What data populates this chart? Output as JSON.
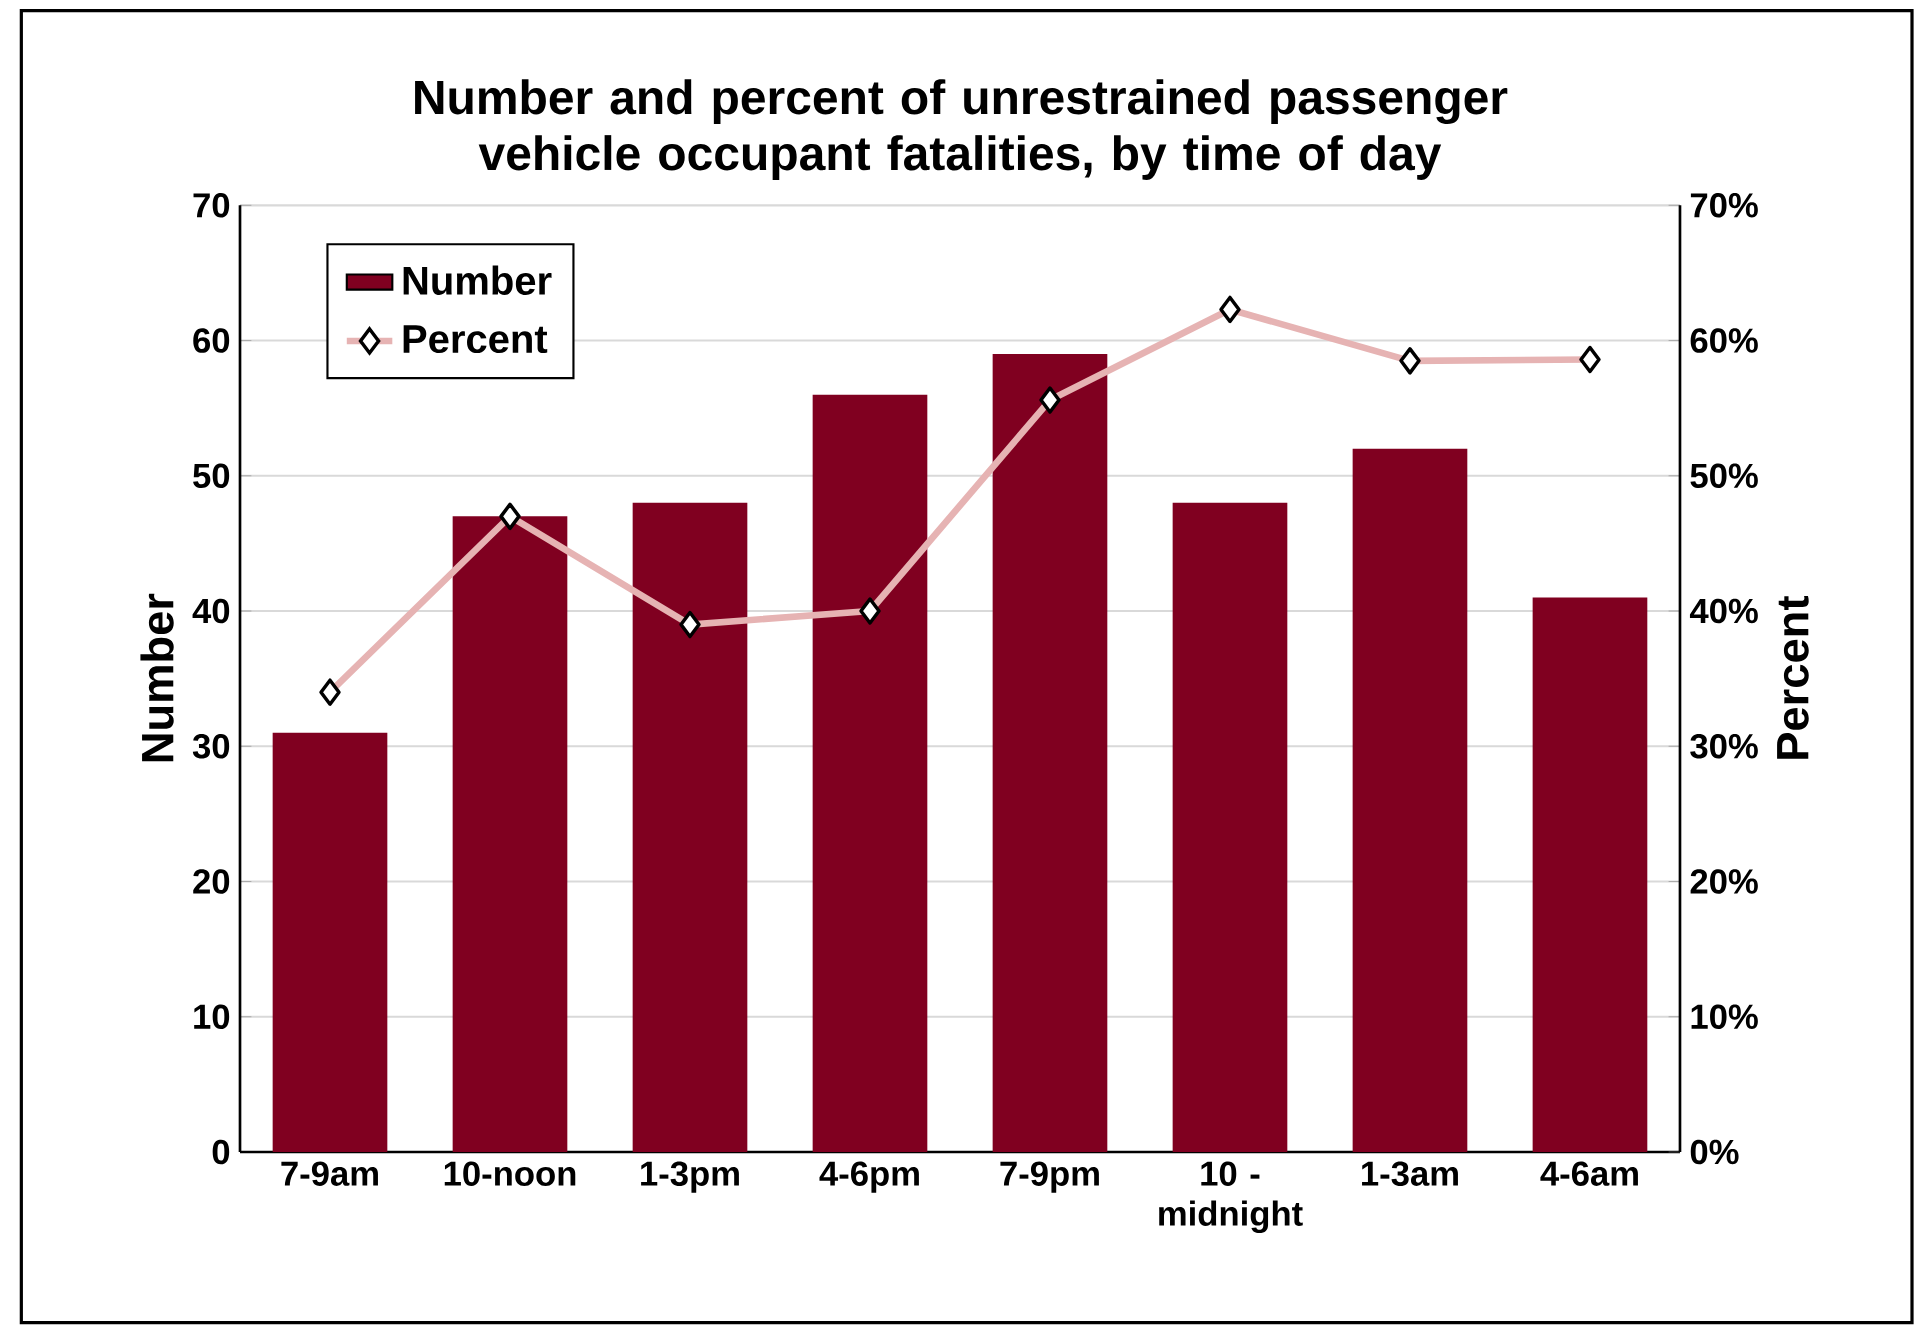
{
  "chart_data": {
    "type": "bar",
    "title": "Number and percent of unrestrained passenger vehicle occupant fatalities, by time of day",
    "categories": [
      "7-9am",
      "10-noon",
      "1-3pm",
      "4-6pm",
      "7-9pm",
      "10 - midnight",
      "1-3am",
      "4-6am"
    ],
    "series": [
      {
        "name": "Number",
        "color": "#800020",
        "values": [
          31,
          47,
          48,
          56,
          59,
          48,
          52,
          41
        ]
      },
      {
        "name": "Percent",
        "type": "line",
        "axis": "y2",
        "color": "#e6b3b3",
        "marker": "diamond",
        "values": [
          34,
          47,
          39,
          40,
          55.6,
          62.3,
          58.5,
          58.6
        ]
      }
    ],
    "ylabel": "Number",
    "y2label": "Percent",
    "ylim": [
      0,
      70
    ],
    "yticks": [
      0,
      10,
      20,
      30,
      40,
      50,
      60,
      70
    ],
    "y2lim": [
      0,
      70
    ],
    "y2ticks": [
      {
        "value": 0,
        "label": "0%"
      },
      {
        "value": 10,
        "label": "10%"
      },
      {
        "value": 20,
        "label": "20%"
      },
      {
        "value": 30,
        "label": "30%"
      },
      {
        "value": 40,
        "label": "40%"
      },
      {
        "value": 50,
        "label": "50%"
      },
      {
        "value": 60,
        "label": "60%"
      },
      {
        "value": 70,
        "label": "70%"
      }
    ],
    "grid": "y",
    "legend": "top left"
  }
}
